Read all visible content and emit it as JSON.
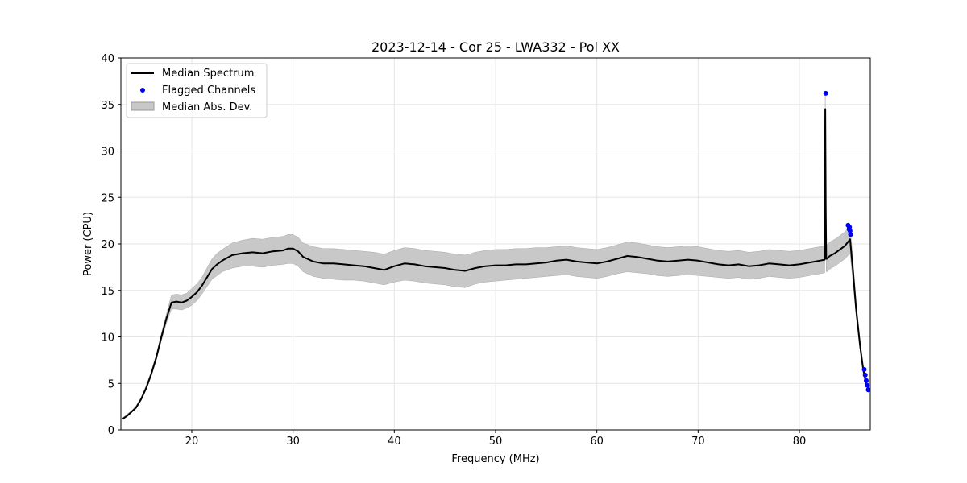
{
  "chart_data": {
    "type": "line",
    "title": "2023-12-14 - Cor 25 - LWA332 - Pol XX",
    "xlabel": "Frequency (MHz)",
    "ylabel": "Power (CPU)",
    "xlim": [
      13,
      87
    ],
    "ylim": [
      0,
      40
    ],
    "xticks": [
      20,
      30,
      40,
      50,
      60,
      70,
      80
    ],
    "yticks": [
      0,
      5,
      10,
      15,
      20,
      25,
      30,
      35,
      40
    ],
    "grid": true,
    "legend_position": "top-left",
    "legend": [
      {
        "label": "Median Spectrum",
        "kind": "line",
        "color": "#000000"
      },
      {
        "label": "Flagged Channels",
        "kind": "marker",
        "color": "#0000ff"
      },
      {
        "label": "Median Abs. Dev.",
        "kind": "band",
        "color": "#c8c8c8"
      }
    ],
    "series": [
      {
        "name": "Median Spectrum",
        "color": "#000000",
        "x": [
          13.2,
          13.6,
          14,
          14.5,
          15,
          15.5,
          16,
          16.5,
          17,
          17.5,
          18,
          18.5,
          19,
          19.5,
          20,
          20.5,
          21,
          21.5,
          22,
          22.5,
          23,
          24,
          25,
          26,
          27,
          28,
          29,
          29.5,
          30,
          30.5,
          31,
          32,
          33,
          34,
          35,
          36,
          37,
          38,
          39,
          40,
          41,
          42,
          43,
          44,
          45,
          46,
          47,
          48,
          49,
          50,
          51,
          52,
          53,
          54,
          55,
          56,
          57,
          58,
          59,
          60,
          61,
          62,
          63,
          64,
          65,
          66,
          67,
          68,
          69,
          70,
          71,
          72,
          73,
          74,
          75,
          76,
          77,
          78,
          79,
          80,
          81,
          82,
          82.5,
          82.55,
          82.6,
          82.65,
          82.7,
          82.8,
          83,
          83.5,
          84,
          84.5,
          85,
          85.3,
          85.6,
          86,
          86.3,
          86.6,
          86.9
        ],
        "values": [
          1.2,
          1.5,
          1.9,
          2.4,
          3.3,
          4.5,
          6.0,
          7.8,
          10.0,
          12.0,
          13.7,
          13.8,
          13.7,
          13.9,
          14.3,
          14.8,
          15.5,
          16.4,
          17.3,
          17.8,
          18.2,
          18.8,
          19.0,
          19.1,
          19.0,
          19.2,
          19.3,
          19.5,
          19.5,
          19.2,
          18.6,
          18.1,
          17.9,
          17.9,
          17.8,
          17.7,
          17.6,
          17.4,
          17.2,
          17.6,
          17.9,
          17.8,
          17.6,
          17.5,
          17.4,
          17.2,
          17.1,
          17.4,
          17.6,
          17.7,
          17.7,
          17.8,
          17.8,
          17.9,
          18.0,
          18.2,
          18.3,
          18.1,
          18.0,
          17.9,
          18.1,
          18.4,
          18.7,
          18.6,
          18.4,
          18.2,
          18.1,
          18.2,
          18.3,
          18.2,
          18.0,
          17.8,
          17.7,
          17.8,
          17.6,
          17.7,
          17.9,
          17.8,
          17.7,
          17.8,
          18.0,
          18.2,
          18.3,
          34.5,
          24.0,
          18.4,
          18.4,
          18.5,
          18.7,
          19.0,
          19.4,
          19.8,
          20.5,
          17.0,
          13.0,
          9.0,
          6.5,
          5.0,
          4.2
        ],
        "band_low": [
          1.1,
          1.4,
          1.8,
          2.3,
          3.2,
          4.3,
          5.8,
          7.5,
          9.6,
          11.5,
          13.0,
          13.0,
          12.9,
          13.1,
          13.4,
          13.9,
          14.6,
          15.4,
          16.2,
          16.6,
          17.0,
          17.4,
          17.6,
          17.6,
          17.5,
          17.7,
          17.8,
          17.9,
          17.9,
          17.6,
          17.0,
          16.5,
          16.3,
          16.2,
          16.1,
          16.1,
          16.0,
          15.8,
          15.6,
          15.9,
          16.1,
          16.0,
          15.8,
          15.7,
          15.6,
          15.4,
          15.3,
          15.7,
          15.9,
          16.0,
          16.1,
          16.2,
          16.3,
          16.4,
          16.5,
          16.6,
          16.7,
          16.5,
          16.4,
          16.3,
          16.5,
          16.8,
          17.0,
          16.9,
          16.8,
          16.6,
          16.5,
          16.6,
          16.7,
          16.6,
          16.5,
          16.4,
          16.3,
          16.4,
          16.2,
          16.3,
          16.5,
          16.4,
          16.3,
          16.4,
          16.6,
          16.8,
          16.9,
          33.0,
          22.5,
          17.0,
          17.0,
          17.1,
          17.3,
          17.6,
          18.0,
          18.4,
          19.0,
          15.8,
          12.2,
          8.5,
          6.0,
          4.7,
          4.0
        ],
        "band_high": [
          1.3,
          1.7,
          2.0,
          2.6,
          3.5,
          4.8,
          6.3,
          8.1,
          10.4,
          12.5,
          14.5,
          14.6,
          14.5,
          14.7,
          15.2,
          15.7,
          16.4,
          17.4,
          18.4,
          19.0,
          19.4,
          20.1,
          20.4,
          20.6,
          20.5,
          20.7,
          20.8,
          21.0,
          21.0,
          20.7,
          20.1,
          19.7,
          19.5,
          19.5,
          19.4,
          19.3,
          19.2,
          19.1,
          18.9,
          19.3,
          19.6,
          19.5,
          19.3,
          19.2,
          19.1,
          18.9,
          18.8,
          19.1,
          19.3,
          19.4,
          19.4,
          19.5,
          19.5,
          19.6,
          19.6,
          19.7,
          19.8,
          19.6,
          19.5,
          19.4,
          19.6,
          19.9,
          20.2,
          20.1,
          19.9,
          19.7,
          19.6,
          19.7,
          19.8,
          19.7,
          19.5,
          19.3,
          19.2,
          19.3,
          19.1,
          19.2,
          19.4,
          19.3,
          19.2,
          19.3,
          19.5,
          19.7,
          19.8,
          36.0,
          25.5,
          19.9,
          19.9,
          20.0,
          20.2,
          20.5,
          20.9,
          21.3,
          22.0,
          18.2,
          13.8,
          9.5,
          7.0,
          5.3,
          4.5
        ]
      },
      {
        "name": "Flagged Channels",
        "color": "#0000ff",
        "x": [
          82.6,
          84.8,
          84.9,
          84.95,
          85.0,
          85.05,
          86.4,
          86.5,
          86.6,
          86.7,
          86.8
        ],
        "values": [
          36.2,
          22.0,
          21.6,
          21.8,
          21.4,
          21.0,
          6.5,
          5.9,
          5.3,
          4.8,
          4.3
        ]
      }
    ]
  }
}
